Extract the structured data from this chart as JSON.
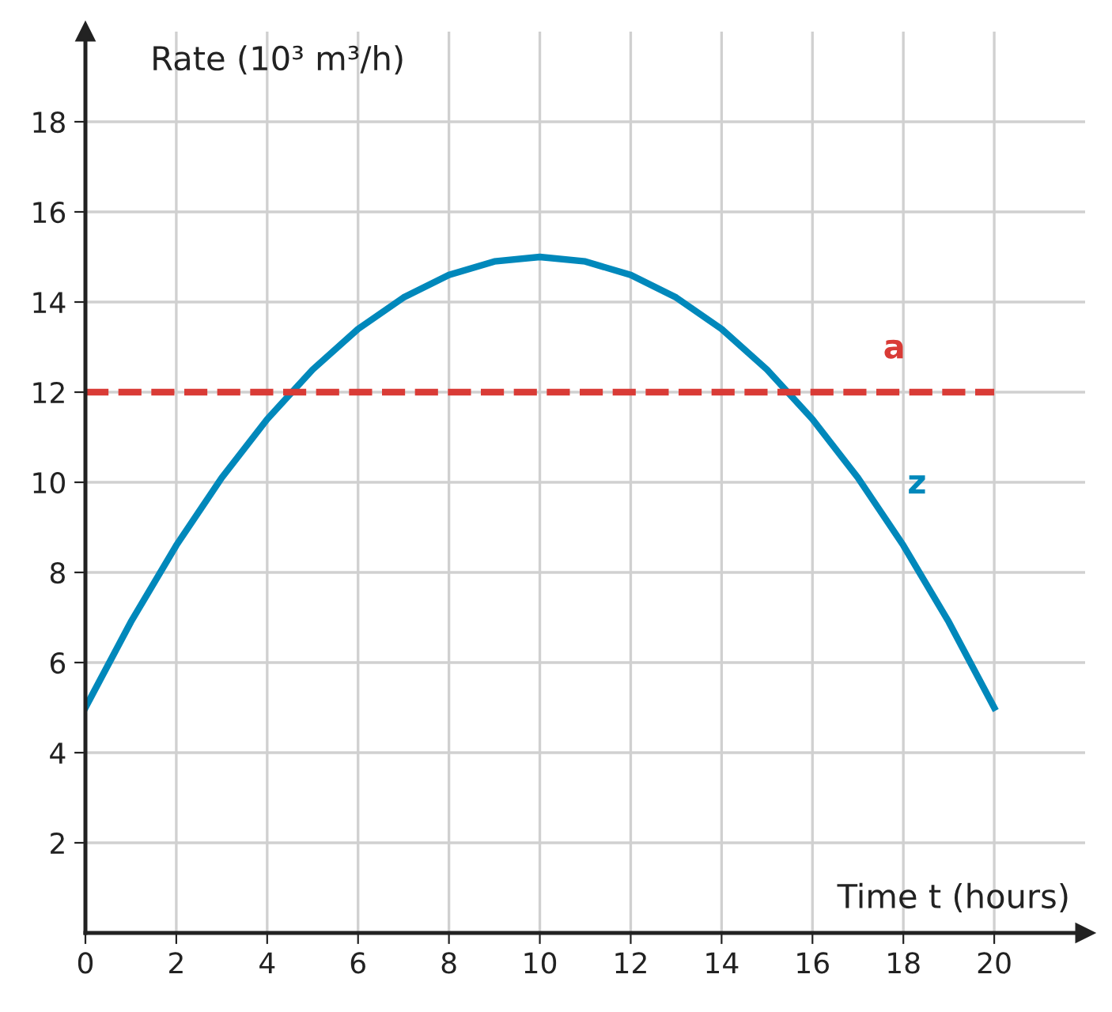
{
  "chart_data": {
    "type": "line",
    "xlabel": "Time t (hours)",
    "ylabel": "Rate (10³ m³/h)",
    "series": [
      {
        "name": "z",
        "color": "#0088bb",
        "line_style": "solid",
        "x": [
          0,
          1,
          2,
          3,
          4,
          5,
          6,
          7,
          8,
          9,
          10,
          11,
          12,
          13,
          14,
          15,
          16,
          17,
          18,
          19,
          20
        ],
        "values": [
          5,
          6.9,
          8.6,
          10.1,
          11.4,
          12.5,
          13.4,
          14.1,
          14.6,
          14.9,
          15,
          14.9,
          14.6,
          14.1,
          13.4,
          12.5,
          11.4,
          10.1,
          8.6,
          6.9,
          5
        ]
      },
      {
        "name": "a",
        "color": "#d93b36",
        "line_style": "dashed",
        "x": [
          0,
          20
        ],
        "values": [
          12,
          12
        ]
      }
    ],
    "xlim": [
      0,
      22
    ],
    "ylim": [
      0,
      20
    ],
    "xticks": [
      0,
      2,
      4,
      6,
      8,
      10,
      12,
      14,
      16,
      18,
      20
    ],
    "yticks": [
      2,
      4,
      6,
      8,
      10,
      12,
      14,
      16,
      18
    ],
    "grid": true,
    "legend": false,
    "marker": "none"
  }
}
